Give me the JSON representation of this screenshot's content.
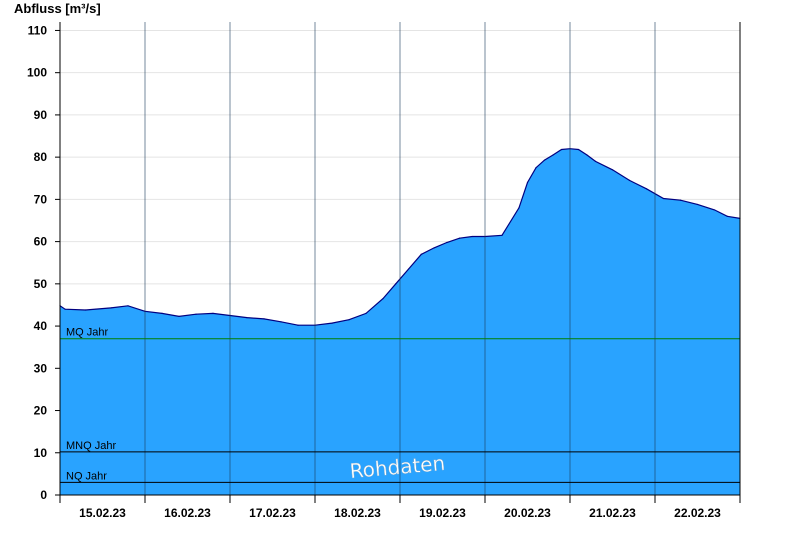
{
  "chart_data": {
    "type": "area",
    "title": "",
    "ylabel": "Abfluss [m³/s]",
    "xlabel": "",
    "ylim": [
      0,
      112
    ],
    "yticks": [
      0,
      10,
      20,
      30,
      40,
      50,
      60,
      70,
      80,
      90,
      100,
      110
    ],
    "x_start_days": 0,
    "x_end_days": 8,
    "xtick_labels": [
      "15.02.23",
      "16.02.23",
      "17.02.23",
      "18.02.23",
      "19.02.23",
      "20.02.23",
      "21.02.23",
      "22.02.23"
    ],
    "grid": true,
    "series": [
      {
        "name": "",
        "color": "#29A3FF",
        "line_color": "#000080",
        "x_days": [
          0.0,
          0.06,
          0.3,
          0.6,
          0.8,
          1.0,
          1.2,
          1.4,
          1.6,
          1.8,
          2.0,
          2.2,
          2.4,
          2.6,
          2.8,
          3.0,
          3.2,
          3.4,
          3.6,
          3.8,
          3.95,
          4.1,
          4.25,
          4.4,
          4.55,
          4.7,
          4.85,
          5.0,
          5.2,
          5.4,
          5.5,
          5.6,
          5.7,
          5.8,
          5.9,
          6.0,
          6.1,
          6.2,
          6.3,
          6.5,
          6.7,
          6.9,
          7.1,
          7.3,
          7.5,
          7.7,
          7.85,
          8.0
        ],
        "values": [
          44.8,
          44,
          43.8,
          44.3,
          44.8,
          43.5,
          43,
          42.3,
          42.8,
          43,
          42.5,
          42,
          41.7,
          41,
          40.2,
          40.2,
          40.7,
          41.5,
          43,
          46.5,
          50,
          53.5,
          57,
          58.5,
          59.8,
          60.8,
          61.2,
          61.2,
          61.5,
          68,
          74,
          77.5,
          79.3,
          80.5,
          81.8,
          82,
          81.8,
          80.5,
          79,
          77,
          74.5,
          72.5,
          70.2,
          69.8,
          68.8,
          67.5,
          66,
          65.5
        ]
      }
    ],
    "reference_lines": [
      {
        "label": "MQ Jahr",
        "value": 37,
        "color": "#008000"
      },
      {
        "label": "MNQ Jahr",
        "value": 10.2,
        "color": "#000000"
      },
      {
        "label": "NQ Jahr",
        "value": 3,
        "color": "#000000"
      }
    ],
    "watermark": "Rohdaten"
  }
}
